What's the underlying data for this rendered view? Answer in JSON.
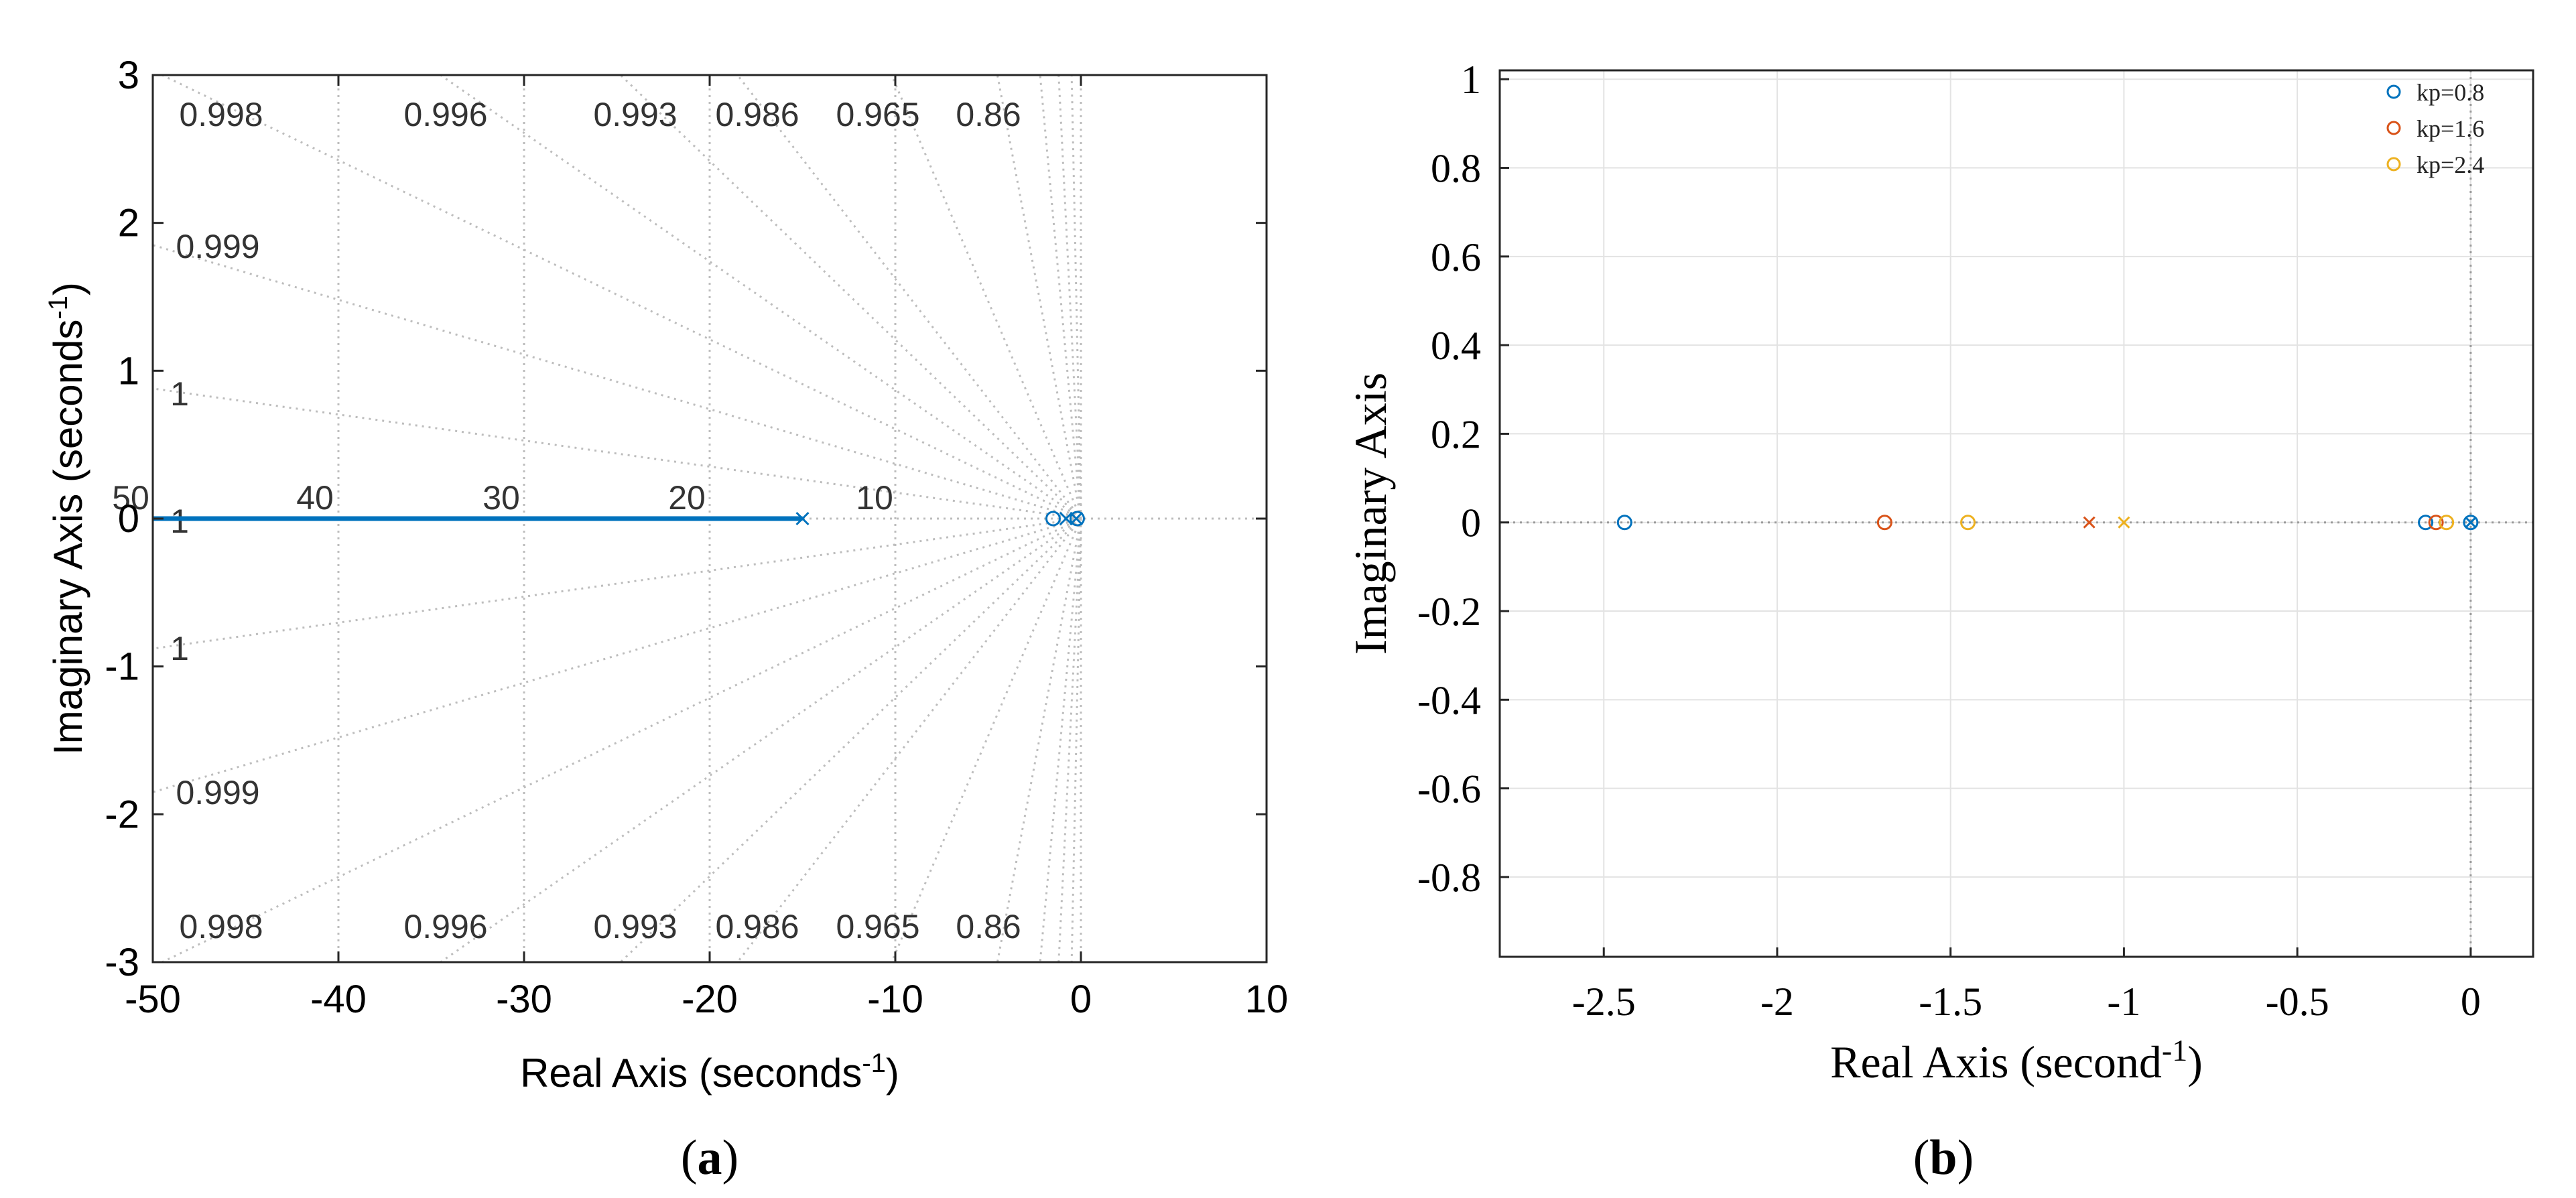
{
  "chart_data": [
    {
      "type": "scatter",
      "subtype": "root-locus",
      "caption_open": "(",
      "caption_letter": "a",
      "caption_close": ")",
      "xlabel": "Real Axis (seconds",
      "xlabel_sup": "-1",
      "xlabel_close": ")",
      "ylabel": "Imaginary Axis (seconds",
      "ylabel_sup": "-1",
      "ylabel_close": ")",
      "xlim": [
        -50,
        10
      ],
      "ylim": [
        -3,
        3
      ],
      "xticks": [
        -50,
        -40,
        -30,
        -20,
        -10,
        0,
        10
      ],
      "xtick_labels": [
        "-50",
        "-40",
        "-30",
        "-20",
        "-10",
        "0",
        "10"
      ],
      "yticks": [
        3,
        2,
        1,
        0,
        -1,
        -2,
        -3
      ],
      "ytick_labels": [
        "3",
        "2",
        "1",
        "0",
        "-1",
        "-2",
        "-3"
      ],
      "damping_ratios": [
        {
          "zeta": 0.998,
          "label": "0.998"
        },
        {
          "zeta": 0.996,
          "label": "0.996"
        },
        {
          "zeta": 0.993,
          "label": "0.993"
        },
        {
          "zeta": 0.986,
          "label": "0.986"
        },
        {
          "zeta": 0.965,
          "label": "0.965"
        },
        {
          "zeta": 0.86,
          "label": "0.86"
        },
        {
          "zeta": 0.999,
          "label": "0.999"
        },
        {
          "zeta": 1,
          "label": "1"
        }
      ],
      "natural_frequency_labels": [
        "50",
        "40",
        "30",
        "20",
        "10"
      ],
      "extra_labels": [
        "1"
      ],
      "locus": {
        "x": [
          -50,
          -15
        ],
        "y": [
          0,
          0
        ],
        "color": "#0072BD"
      },
      "poles": [
        -15,
        -0.8,
        -0.25
      ],
      "zeros": [
        -1.5,
        -0.2
      ],
      "color": "#0072BD"
    },
    {
      "type": "scatter",
      "subtype": "pole-zero map",
      "caption_open": "(",
      "caption_letter": "b",
      "caption_close": ")",
      "xlabel": "Real Axis (second",
      "xlabel_sup": "-1",
      "xlabel_close": ")",
      "ylabel": "Imaginary Axis",
      "xlim": [
        -2.8,
        0.18
      ],
      "ylim": [
        -0.98,
        1.02
      ],
      "xticks": [
        -2.5,
        -2,
        -1.5,
        -1,
        -0.5,
        0
      ],
      "xtick_labels": [
        "-2.5",
        "-2",
        "-1.5",
        "-1",
        "-0.5",
        "0"
      ],
      "yticks": [
        1,
        0.8,
        0.6,
        0.4,
        0.2,
        0,
        -0.2,
        -0.4,
        -0.6,
        -0.8
      ],
      "ytick_labels": [
        "1",
        "0.8",
        "0.6",
        "0.4",
        "0.2",
        "0",
        "-0.2",
        "-0.4",
        "-0.6",
        "-0.8"
      ],
      "legend_position": "top-right",
      "series": [
        {
          "name": "kp=0.8",
          "color": "#0072BD",
          "zeros": [
            -2.44,
            -0.13,
            0
          ],
          "poles": [
            0
          ]
        },
        {
          "name": "kp=1.6",
          "color": "#D95319",
          "zeros": [
            -1.69,
            -0.1
          ],
          "poles": [
            -1.1
          ]
        },
        {
          "name": "kp=2.4",
          "color": "#EDB120",
          "zeros": [
            -1.45,
            -0.07
          ],
          "poles": [
            -1.0
          ]
        }
      ]
    }
  ]
}
